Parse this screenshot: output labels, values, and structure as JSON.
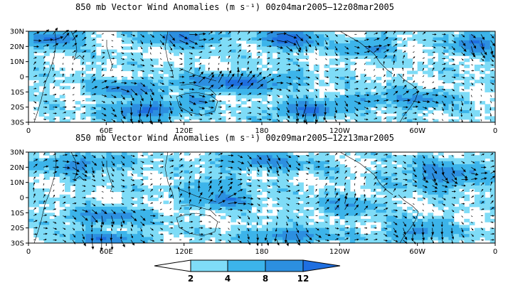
{
  "chart_data": [
    {
      "type": "heatmap",
      "title": "850 mb Vector Wind Anomalies (m s⁻¹) 00z04mar2005–12z08mar2005",
      "x_ticks": [
        "0",
        "60E",
        "120E",
        "180",
        "120W",
        "60W",
        "0"
      ],
      "x_values": [
        0,
        60,
        120,
        180,
        240,
        300,
        360
      ],
      "y_ticks": [
        "30N",
        "20N",
        "10N",
        "0",
        "10S",
        "20S",
        "30S"
      ],
      "y_values": [
        30,
        20,
        10,
        0,
        -10,
        -20,
        -30
      ],
      "xlim": [
        0,
        360
      ],
      "ylim": [
        -30,
        30
      ],
      "overlay": "wind vectors",
      "blobs": [
        {
          "lon": 20,
          "lat": 25,
          "sx": 18,
          "sy": 5,
          "a": 11
        },
        {
          "lon": 120,
          "lat": 26,
          "sx": 25,
          "sy": 5,
          "a": 9
        },
        {
          "lon": 200,
          "lat": 25,
          "sx": 20,
          "sy": 6,
          "a": 12
        },
        {
          "lon": 345,
          "lat": 22,
          "sx": 15,
          "sy": 7,
          "a": 10
        },
        {
          "lon": 265,
          "lat": 20,
          "sx": 15,
          "sy": 6,
          "a": 7
        },
        {
          "lon": 160,
          "lat": -4,
          "sx": 40,
          "sy": 5,
          "a": 11
        },
        {
          "lon": 75,
          "lat": -8,
          "sx": 25,
          "sy": 5,
          "a": 8
        },
        {
          "lon": 90,
          "lat": -22,
          "sx": 25,
          "sy": 5,
          "a": 12
        },
        {
          "lon": 215,
          "lat": -22,
          "sx": 22,
          "sy": 5,
          "a": 11
        },
        {
          "lon": 300,
          "lat": -15,
          "sx": 25,
          "sy": 6,
          "a": 6
        },
        {
          "lon": 130,
          "lat": -15,
          "sx": 12,
          "sy": 4,
          "a": 7
        },
        {
          "lon": 255,
          "lat": -15,
          "sx": 20,
          "sy": 4,
          "a": 5
        }
      ]
    },
    {
      "type": "heatmap",
      "title": "850 mb Vector Wind Anomalies (m s⁻¹) 00z09mar2005–12z13mar2005",
      "x_ticks": [
        "0",
        "60E",
        "120E",
        "180",
        "120W",
        "60W",
        "0"
      ],
      "x_values": [
        0,
        60,
        120,
        180,
        240,
        300,
        360
      ],
      "y_ticks": [
        "30N",
        "20N",
        "10N",
        "0",
        "10S",
        "20S",
        "30S"
      ],
      "y_values": [
        30,
        20,
        10,
        0,
        -10,
        -20,
        -30
      ],
      "xlim": [
        0,
        360
      ],
      "ylim": [
        -30,
        30
      ],
      "overlay": "wind vectors",
      "blobs": [
        {
          "lon": 40,
          "lat": 22,
          "sx": 30,
          "sy": 6,
          "a": 7
        },
        {
          "lon": 180,
          "lat": 24,
          "sx": 35,
          "sy": 5,
          "a": 7
        },
        {
          "lon": 320,
          "lat": 15,
          "sx": 30,
          "sy": 8,
          "a": 8
        },
        {
          "lon": 140,
          "lat": 5,
          "sx": 20,
          "sy": 6,
          "a": 6
        },
        {
          "lon": 155,
          "lat": -2,
          "sx": 18,
          "sy": 4,
          "a": 9
        },
        {
          "lon": 60,
          "lat": -12,
          "sx": 30,
          "sy": 5,
          "a": 8
        },
        {
          "lon": 60,
          "lat": -27,
          "sx": 25,
          "sy": 4,
          "a": 9
        },
        {
          "lon": 200,
          "lat": -25,
          "sx": 30,
          "sy": 4,
          "a": 9
        },
        {
          "lon": 300,
          "lat": -22,
          "sx": 25,
          "sy": 6,
          "a": 7
        },
        {
          "lon": 245,
          "lat": -5,
          "sx": 25,
          "sy": 6,
          "a": 5
        }
      ]
    }
  ],
  "colorbar": {
    "labels": [
      "2",
      "4",
      "8",
      "12"
    ],
    "bounds": [
      2,
      4,
      8,
      12
    ],
    "colors": [
      "#ffffff",
      "#7fdcf7",
      "#3cb4ea",
      "#2c8fe0",
      "#1f6fe0"
    ]
  }
}
